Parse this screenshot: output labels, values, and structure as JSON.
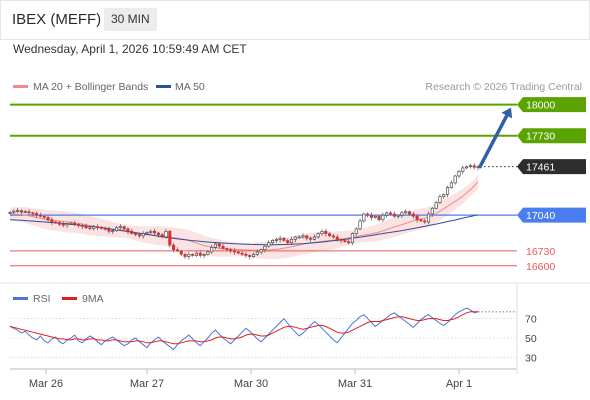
{
  "header": {
    "symbol": "IBEX (MEFF)",
    "timeframe": "30 MIN",
    "datetime": "Wednesday, April 1, 2026 10:59:49 AM CET"
  },
  "legend": {
    "ma20_label": "MA 20 + Bollinger Bands",
    "ma50_label": "MA 50",
    "credit": "Research © 2026 Trading Central"
  },
  "colors": {
    "resistance": "#5aa300",
    "support": "#4a7ef0",
    "pivot": "#2d2d2d",
    "minor_support": "#e75a5a",
    "ma20": "#f08a8a",
    "ma50": "#2f4f9a",
    "band_fill": "#fbe3e3",
    "arrow": "#2f5fa8",
    "rsi": "#4a74d8",
    "rsi_ma": "#e02020",
    "candle_up": "#3a9a3a",
    "candle_down": "#d33030"
  },
  "chart_data": [
    {
      "type": "candlestick",
      "yrange": [
        16520,
        18040
      ],
      "categories": [
        "Mar 26",
        "Mar 27",
        "Mar 30",
        "Mar 31",
        "Apr 1"
      ],
      "levels": [
        {
          "name": "resistance-2",
          "value": 18000,
          "label": "18000",
          "kind": "resistance"
        },
        {
          "name": "resistance-1",
          "value": 17730,
          "label": "17730",
          "kind": "resistance"
        },
        {
          "name": "pivot",
          "value": 17461,
          "label": "17461",
          "kind": "pivot"
        },
        {
          "name": "support-1",
          "value": 17040,
          "label": "17040",
          "kind": "support"
        },
        {
          "name": "support-2",
          "value": 16730,
          "label": "16730",
          "kind": "minor"
        },
        {
          "name": "support-3",
          "value": 16600,
          "label": "16600",
          "kind": "minor"
        }
      ],
      "close": [
        17065,
        17075,
        17080,
        17065,
        17070,
        17060,
        17055,
        17040,
        17030,
        17020,
        17000,
        16980,
        16975,
        16960,
        16955,
        16965,
        16970,
        16960,
        16950,
        16945,
        16930,
        16925,
        16940,
        16935,
        16925,
        16920,
        16900,
        16905,
        16930,
        16940,
        16920,
        16900,
        16880,
        16870,
        16860,
        16880,
        16890,
        16900,
        16885,
        16870,
        16850,
        16900,
        16780,
        16740,
        16730,
        16700,
        16680,
        16700,
        16690,
        16710,
        16690,
        16700,
        16720,
        16760,
        16790,
        16770,
        16750,
        16740,
        16730,
        16720,
        16710,
        16700,
        16690,
        16680,
        16700,
        16720,
        16740,
        16770,
        16800,
        16820,
        16830,
        16840,
        16820,
        16800,
        16830,
        16850,
        16850,
        16860,
        16840,
        16830,
        16850,
        16880,
        16900,
        16880,
        16860,
        16850,
        16830,
        16820,
        16810,
        16800,
        16880,
        16920,
        16990,
        17050,
        17040,
        17020,
        17030,
        17000,
        17040,
        17060,
        17050,
        17030,
        17040,
        17060,
        17070,
        17050,
        17030,
        17000,
        16990,
        16980,
        17050,
        17100,
        17150,
        17200,
        17220,
        17280,
        17320,
        17380,
        17420,
        17450,
        17460,
        17470,
        17455,
        17461
      ],
      "ma20": [
        17050,
        17048,
        17045,
        17040,
        17030,
        17020,
        17010,
        17000,
        16995,
        16990,
        16985,
        16980,
        16975,
        16968,
        16960,
        16950,
        16942,
        16935,
        16928,
        16920,
        16912,
        16905,
        16898,
        16890,
        16882,
        16875,
        16870,
        16866,
        16862,
        16858,
        16852,
        16845,
        16838,
        16830,
        16820,
        16805,
        16790,
        16775,
        16765,
        16758,
        16752,
        16748,
        16745,
        16742,
        16740,
        16738,
        16736,
        16735,
        16735,
        16736,
        16740,
        16745,
        16752,
        16760,
        16770,
        16780,
        16790,
        16798,
        16805,
        16810,
        16815,
        16820,
        16825,
        16832,
        16840,
        16848,
        16856,
        16864,
        16872,
        16880,
        16890,
        16905,
        16920,
        16935,
        16950,
        16965,
        16980,
        16995,
        17005,
        17015,
        17030,
        17055,
        17080,
        17110,
        17140,
        17170,
        17200,
        17240,
        17280,
        17330
      ],
      "ma50": [
        17000,
        16998,
        16995,
        16992,
        16988,
        16984,
        16980,
        16976,
        16972,
        16968,
        16963,
        16958,
        16952,
        16946,
        16940,
        16934,
        16928,
        16922,
        16915,
        16908,
        16900,
        16892,
        16884,
        16876,
        16868,
        16860,
        16852,
        16845,
        16838,
        16832,
        16826,
        16820,
        16815,
        16810,
        16806,
        16802,
        16799,
        16796,
        16793,
        16790,
        16788,
        16786,
        16785,
        16784,
        16783,
        16783,
        16784,
        16785,
        16787,
        16789,
        16792,
        16796,
        16800,
        16805,
        16810,
        16816,
        16822,
        16828,
        16835,
        16842,
        16850,
        16858,
        16866,
        16874,
        16882,
        16890,
        16898,
        16906,
        16915,
        16924,
        16934,
        16944,
        16954,
        16964,
        16975,
        16986,
        16997,
        17008,
        17020,
        17032,
        17044
      ]
    },
    {
      "type": "line",
      "legend": [
        "RSI",
        "9MA"
      ],
      "yticks": [
        70,
        50,
        30
      ],
      "yrange": [
        20,
        82
      ],
      "rsi": [
        62,
        60,
        58,
        55,
        57,
        53,
        50,
        48,
        52,
        47,
        45,
        49,
        51,
        46,
        44,
        48,
        50,
        53,
        47,
        45,
        49,
        52,
        50,
        46,
        43,
        47,
        49,
        51,
        48,
        45,
        42,
        44,
        48,
        50,
        46,
        43,
        40,
        45,
        48,
        51,
        47,
        44,
        41,
        38,
        43,
        47,
        50,
        53,
        49,
        45,
        42,
        46,
        50,
        55,
        58,
        54,
        50,
        47,
        44,
        48,
        52,
        56,
        60,
        57,
        53,
        49,
        46,
        50,
        54,
        58,
        62,
        66,
        70,
        65,
        60,
        56,
        52,
        55,
        59,
        63,
        67,
        64,
        60,
        56,
        52,
        48,
        45,
        50,
        55,
        60,
        65,
        68,
        72,
        74,
        70,
        66,
        62,
        65,
        68,
        71,
        74,
        76,
        73,
        70,
        67,
        64,
        61,
        65,
        69,
        72,
        74,
        71,
        68,
        65,
        63,
        66,
        70,
        74,
        77,
        79,
        81,
        79,
        76,
        77
      ],
      "rsi_ma": [
        62,
        61,
        60,
        59,
        58,
        57,
        56,
        55,
        54,
        53,
        52,
        51,
        50,
        49,
        49,
        48,
        48,
        49,
        49,
        48,
        48,
        49,
        49,
        48,
        48,
        47,
        47,
        48,
        48,
        47,
        46,
        46,
        46,
        47,
        47,
        46,
        45,
        45,
        46,
        47,
        47,
        46,
        45,
        44,
        44,
        45,
        46,
        47,
        47,
        47,
        46,
        46,
        47,
        48,
        50,
        51,
        51,
        50,
        49,
        49,
        50,
        51,
        53,
        54,
        54,
        53,
        52,
        52,
        53,
        55,
        57,
        59,
        61,
        62,
        62,
        61,
        60,
        59,
        60,
        61,
        62,
        63,
        63,
        62,
        60,
        58,
        56,
        55,
        55,
        56,
        58,
        60,
        62,
        64,
        66,
        67,
        67,
        67,
        68,
        69,
        70,
        71,
        72,
        72,
        71,
        70,
        69,
        68,
        68,
        69,
        70,
        70,
        70,
        69,
        68,
        68,
        69,
        70,
        72,
        74,
        76,
        77,
        77,
        77
      ]
    }
  ]
}
